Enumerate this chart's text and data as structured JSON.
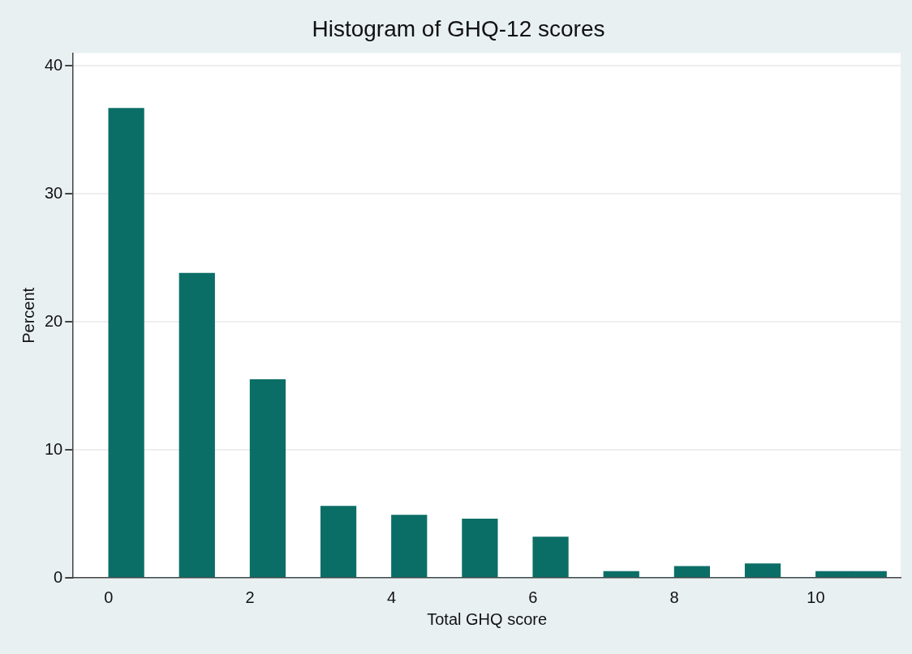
{
  "chart_data": {
    "type": "histogram",
    "title": "Histogram of GHQ-12 scores",
    "xlabel": "Total GHQ score",
    "ylabel": "Percent",
    "bins": [
      0,
      0.5,
      1,
      1.5,
      2,
      2.5,
      3,
      3.5,
      4,
      4.5,
      5,
      5.5,
      6,
      6.5,
      7,
      7.5,
      8,
      8.5,
      9,
      9.5,
      10,
      10.5,
      11
    ],
    "values": [
      36.7,
      0,
      23.8,
      0,
      15.5,
      0,
      5.6,
      0,
      4.9,
      0,
      4.6,
      0,
      3.2,
      0,
      0.5,
      0,
      0.9,
      0,
      1.1,
      0,
      0.5,
      0.5
    ],
    "color": "#0b6e66",
    "xlim": [
      -0.5,
      11.2
    ],
    "xticks": [
      0,
      2,
      4,
      6,
      8,
      10
    ],
    "ylim": [
      0,
      41
    ],
    "yticks": [
      0,
      10,
      20,
      30,
      40
    ],
    "grid": "y",
    "legend": false
  }
}
